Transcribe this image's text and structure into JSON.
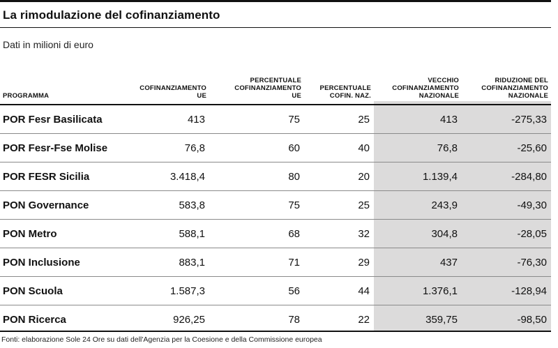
{
  "title": "La rimodulazione del cofinanziamento",
  "subtitle": "Dati in milioni di euro",
  "table": {
    "headers": [
      [
        "PROGRAMMA"
      ],
      [
        "COFINANZIAMENTO",
        "UE"
      ],
      [
        "PERCENTUALE",
        "COFINANZIAMENTO",
        "UE"
      ],
      [
        "PERCENTUALE",
        "COFIN. NAZ."
      ],
      [
        "VECCHIO",
        "COFINANZIAMENTO",
        "NAZIONALE"
      ],
      [
        "RIDUZIONE DEL",
        "COFINANZIAMENTO",
        "NAZIONALE"
      ]
    ],
    "rows": [
      [
        "POR Fesr Basilicata",
        "413",
        "75",
        "25",
        "413",
        "-275,33"
      ],
      [
        "POR Fesr-Fse Molise",
        "76,8",
        "60",
        "40",
        "76,8",
        "-25,60"
      ],
      [
        "POR FESR Sicilia",
        "3.418,4",
        "80",
        "20",
        "1.139,4",
        "-284,80"
      ],
      [
        "PON Governance",
        "583,8",
        "75",
        "25",
        "243,9",
        "-49,30"
      ],
      [
        "PON Metro",
        "588,1",
        "68",
        "32",
        "304,8",
        "-28,05"
      ],
      [
        "PON Inclusione",
        "883,1",
        "71",
        "29",
        "437",
        "-76,30"
      ],
      [
        "PON Scuola",
        "1.587,3",
        "56",
        "44",
        "1.376,1",
        "-128,94"
      ],
      [
        "PON Ricerca",
        "926,25",
        "78",
        "22",
        "359,75",
        "-98,50"
      ]
    ]
  },
  "source": "Fonti: elaborazione Sole 24 Ore su dati dell'Agenzia per la Coesione e della Commissione europea",
  "colors": {
    "shade": "#dcdbdb",
    "rule": "#111111"
  }
}
